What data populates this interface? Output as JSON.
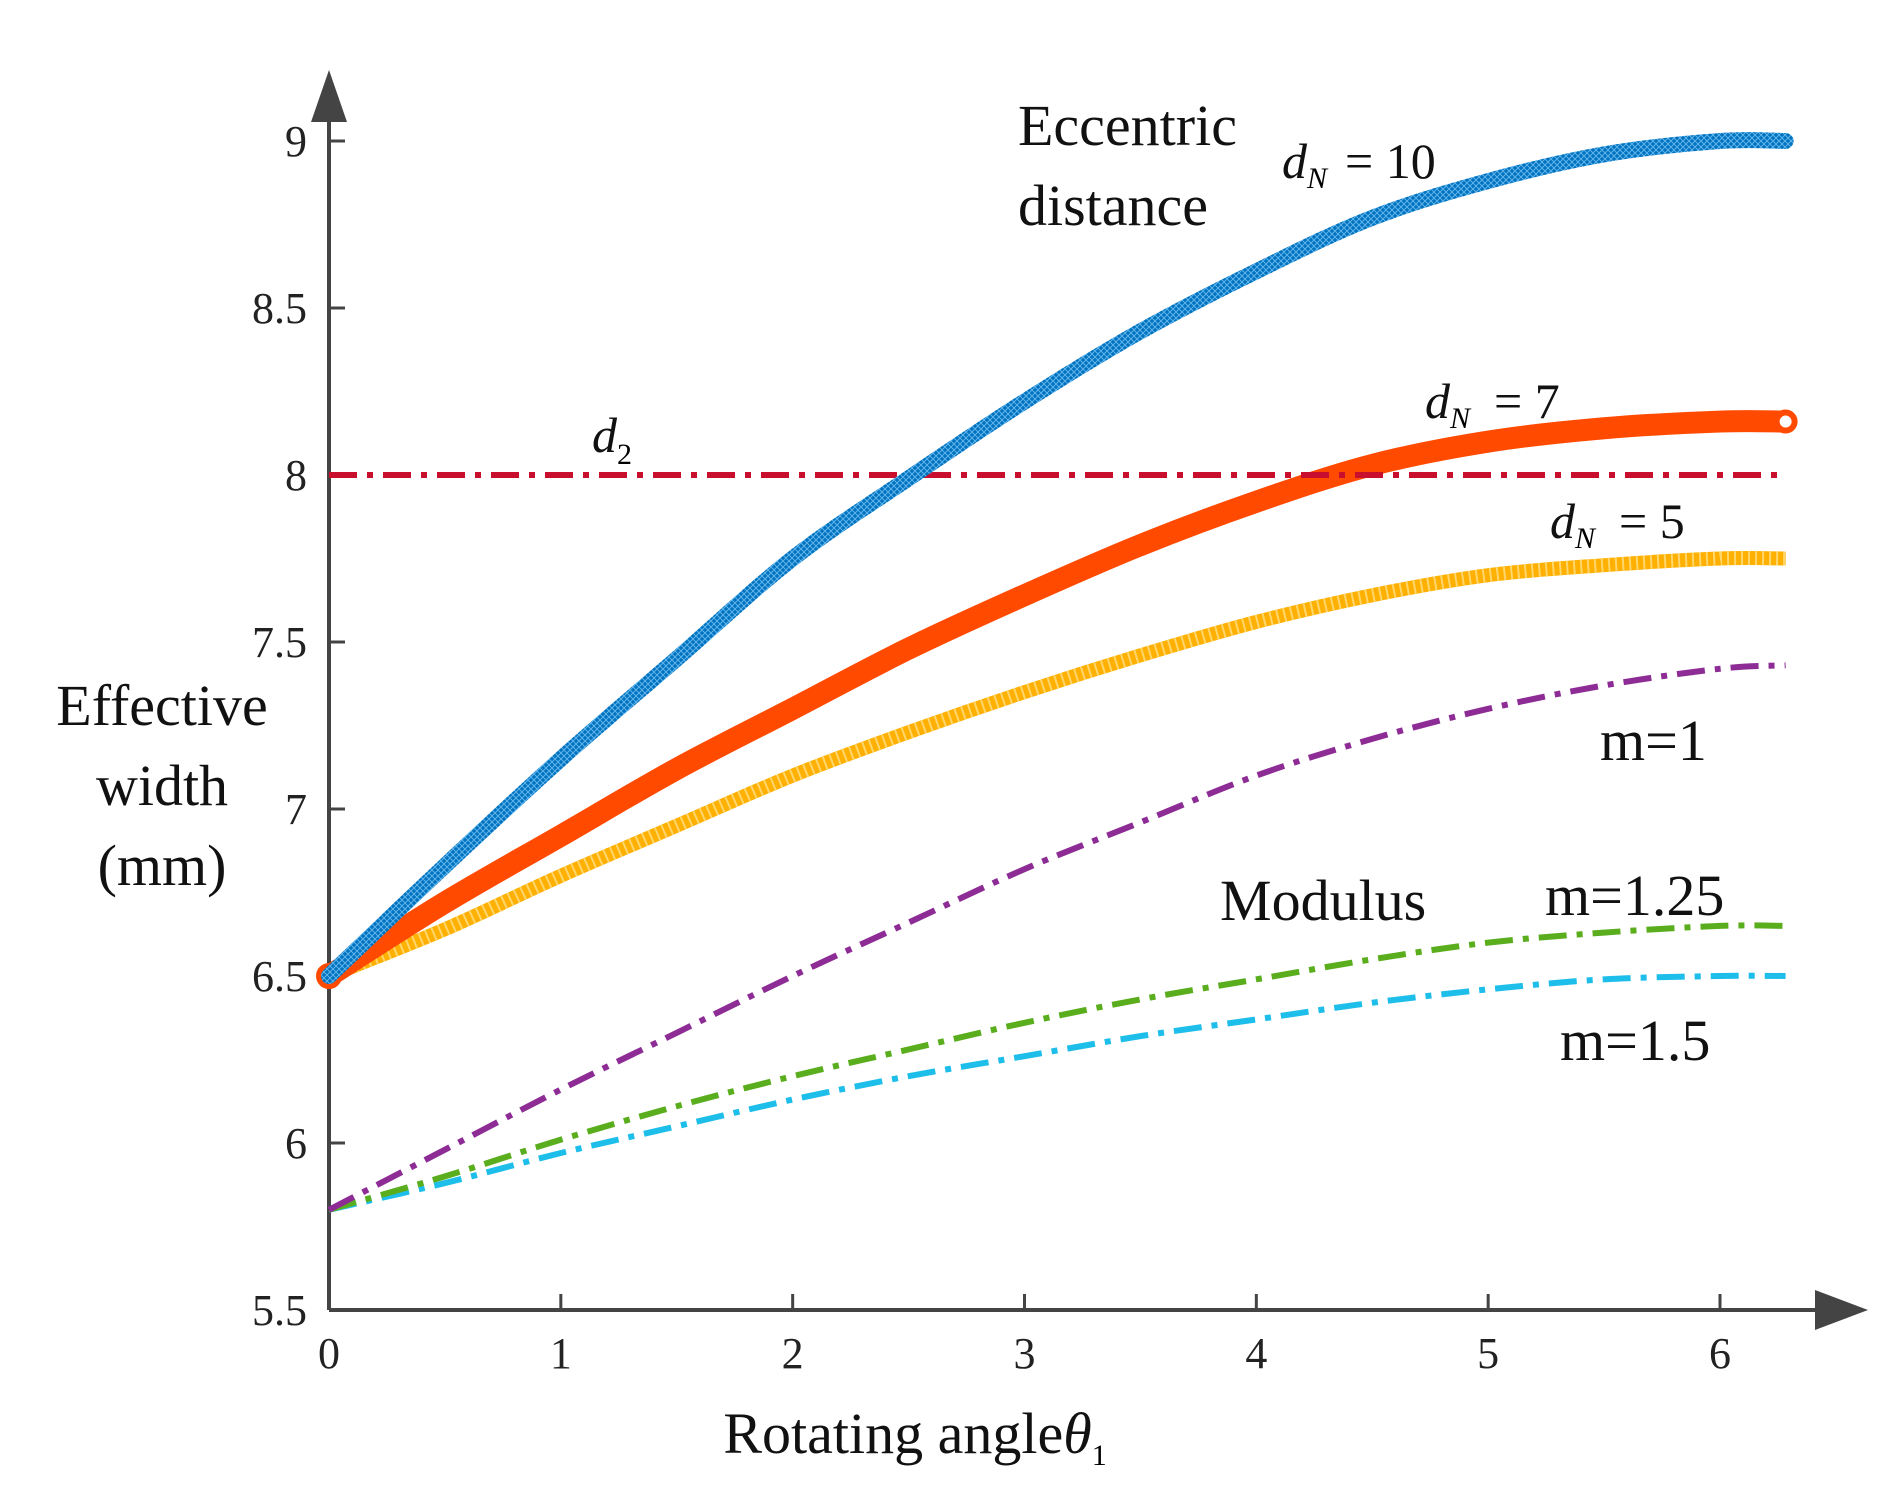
{
  "chart_data": {
    "type": "line",
    "xlabel": "Rotating angle",
    "xlabel_symbol": "θ",
    "xlabel_symbol_sub": "1",
    "ylabel_lines": [
      "Effective",
      "width",
      "(mm)"
    ],
    "xlim": [
      0,
      6.283
    ],
    "ylim": [
      5.5,
      9.2
    ],
    "xticks": [
      0,
      1,
      2,
      3,
      4,
      5,
      6
    ],
    "xtick_labels": [
      "0",
      "1",
      "2",
      "3",
      "4",
      "5",
      "6"
    ],
    "yticks": [
      5.5,
      6,
      6.5,
      7,
      7.5,
      8,
      8.5,
      9
    ],
    "ytick_labels": [
      "5.5",
      "6",
      "6.5",
      "7",
      "7.5",
      "8",
      "8.5",
      "9"
    ],
    "grid": false,
    "legend": "none",
    "series": [
      {
        "key": "dN10",
        "style": "thick-marker",
        "color": "#0072BD",
        "x": [
          0,
          0.5,
          1,
          1.5,
          2,
          2.5,
          3,
          3.5,
          4,
          4.5,
          5,
          5.5,
          6,
          6.283
        ],
        "y": [
          6.5,
          6.83,
          7.15,
          7.45,
          7.75,
          7.99,
          8.22,
          8.43,
          8.61,
          8.77,
          8.88,
          8.96,
          9.0,
          9.0
        ]
      },
      {
        "key": "dN7",
        "style": "thick-circle",
        "color": "#FF4A00",
        "x": [
          0,
          0.5,
          1,
          1.5,
          2,
          2.5,
          3,
          3.5,
          4,
          4.5,
          5,
          5.5,
          6,
          6.283
        ],
        "y": [
          6.5,
          6.72,
          6.92,
          7.12,
          7.3,
          7.48,
          7.64,
          7.79,
          7.92,
          8.03,
          8.1,
          8.14,
          8.16,
          8.16
        ]
      },
      {
        "key": "dN5",
        "style": "thick-square",
        "color": "#FFB000",
        "x": [
          0,
          0.5,
          1,
          1.5,
          2,
          2.5,
          3,
          3.5,
          4,
          4.5,
          5,
          5.5,
          6,
          6.283
        ],
        "y": [
          6.5,
          6.64,
          6.8,
          6.95,
          7.1,
          7.23,
          7.35,
          7.46,
          7.56,
          7.64,
          7.7,
          7.73,
          7.75,
          7.75
        ]
      },
      {
        "key": "d2",
        "style": "dashdot",
        "color": "#C8102E",
        "x": [
          0,
          6.283
        ],
        "y": [
          8.0,
          8.0
        ]
      },
      {
        "key": "m1",
        "style": "dashdot",
        "color": "#8E2C96",
        "x": [
          0,
          0.5,
          1,
          1.5,
          2,
          2.5,
          3,
          3.5,
          4,
          4.5,
          5,
          5.5,
          6,
          6.283
        ],
        "y": [
          5.8,
          5.98,
          6.16,
          6.33,
          6.5,
          6.66,
          6.82,
          6.96,
          7.1,
          7.21,
          7.3,
          7.37,
          7.42,
          7.43
        ]
      },
      {
        "key": "m125",
        "style": "dashdot",
        "color": "#5AAE1E",
        "x": [
          0,
          0.5,
          1,
          1.5,
          2,
          2.5,
          3,
          3.5,
          4,
          4.5,
          5,
          5.5,
          6,
          6.283
        ],
        "y": [
          5.8,
          5.9,
          6.01,
          6.11,
          6.2,
          6.28,
          6.36,
          6.43,
          6.49,
          6.55,
          6.6,
          6.63,
          6.65,
          6.65
        ]
      },
      {
        "key": "m15",
        "style": "dashdot",
        "color": "#1EBEEA",
        "x": [
          0,
          0.5,
          1,
          1.5,
          2,
          2.5,
          3,
          3.5,
          4,
          4.5,
          5,
          5.5,
          6,
          6.283
        ],
        "y": [
          5.8,
          5.88,
          5.97,
          6.05,
          6.13,
          6.2,
          6.26,
          6.32,
          6.37,
          6.42,
          6.46,
          6.49,
          6.5,
          6.5
        ]
      }
    ],
    "annotations": {
      "eccentric_line1": "Eccentric",
      "eccentric_line2": "distance",
      "dN_letter": "d",
      "dN_sub": "N",
      "dN10_value": "= 10",
      "dN7_value": "= 7",
      "dN5_value": "= 5",
      "d2_letter": "d",
      "d2_sub": "2",
      "modulus": "Modulus",
      "m1": "m=1",
      "m125": "m=1.25",
      "m15": "m=1.5"
    }
  }
}
